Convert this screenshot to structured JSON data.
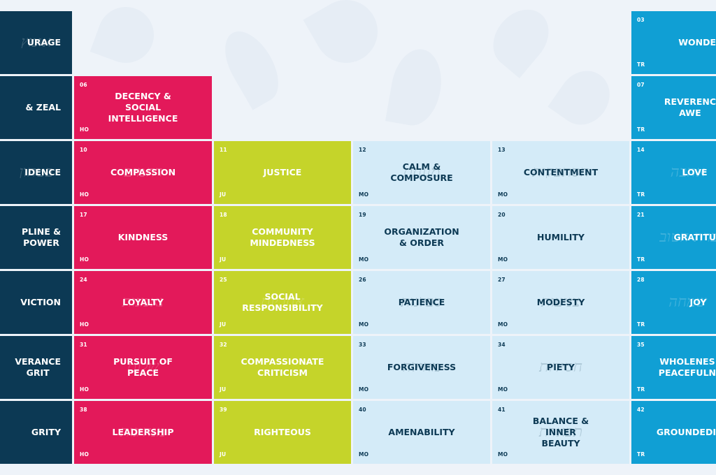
{
  "colors": {
    "navy": "#0c3954",
    "pink": "#e3195a",
    "lime": "#c5d42a",
    "pale": "#d4ebf8",
    "cyan": "#109fd4",
    "background": "#eef3f9"
  },
  "left_column": [
    {
      "name": "URAGE",
      "heb": "אומץ"
    },
    {
      "name": "& ZEAL",
      "heb": ""
    },
    {
      "name": "IDENCE",
      "heb": "בטחון"
    },
    {
      "name": "PLINE &\nPOWER",
      "heb": ""
    },
    {
      "name": "VICTION",
      "heb": ""
    },
    {
      "name": "VERANCE\nGRIT",
      "heb": ""
    },
    {
      "name": "GRITY",
      "heb": ""
    }
  ],
  "cells": [
    {
      "num": "06",
      "name": "DECENCY &\nSOCIAL\nINTELLIGENCE",
      "cat": "HO",
      "heb": ""
    },
    {
      "num": "10",
      "name": "COMPASSION",
      "cat": "HO",
      "heb": "רחמים"
    },
    {
      "num": "11",
      "name": "JUSTICE",
      "cat": "JU",
      "heb": ""
    },
    {
      "num": "12",
      "name": "CALM &\nCOMPOSURE",
      "cat": "MO",
      "heb": "מנוחת"
    },
    {
      "num": "13",
      "name": "CONTENTMENT",
      "cat": "MO",
      "heb": "הסתפקות"
    },
    {
      "num": "17",
      "name": "KINDNESS",
      "cat": "HO",
      "heb": ""
    },
    {
      "num": "18",
      "name": "COMMUNITY\nMINDEDNESS",
      "cat": "JU",
      "heb": ""
    },
    {
      "num": "19",
      "name": "ORGANIZATION\n& ORDER",
      "cat": "MO",
      "heb": ""
    },
    {
      "num": "20",
      "name": "HUMILITY",
      "cat": "MO",
      "heb": ""
    },
    {
      "num": "24",
      "name": "LOYALTY",
      "cat": "HO",
      "heb": "נאמנות"
    },
    {
      "num": "25",
      "name": "SOCIAL\nRESPONSIBILITY",
      "cat": "JU",
      "heb": "אחריות"
    },
    {
      "num": "26",
      "name": "PATIENCE",
      "cat": "MO",
      "heb": "סבלנות"
    },
    {
      "num": "27",
      "name": "MODESTY",
      "cat": "MO",
      "heb": "צניעות"
    },
    {
      "num": "31",
      "name": "PURSUIT OF\nPEACE",
      "cat": "HO",
      "heb": "שלום"
    },
    {
      "num": "32",
      "name": "COMPASSIONATE\nCRITICISM",
      "cat": "JU",
      "heb": ""
    },
    {
      "num": "33",
      "name": "FORGIVENESS",
      "cat": "MO",
      "heb": "מחילה"
    },
    {
      "num": "34",
      "name": "PIETY",
      "cat": "MO",
      "heb": "חסידות"
    },
    {
      "num": "38",
      "name": "LEADERSHIP",
      "cat": "HO",
      "heb": "מנהיגות"
    },
    {
      "num": "39",
      "name": "RIGHTEOUS",
      "cat": "JU",
      "heb": ""
    },
    {
      "num": "40",
      "name": "AMENABILITY",
      "cat": "MO",
      "heb": ""
    },
    {
      "num": "41",
      "name": "BALANCE &\nINNER\nBEAUTY",
      "cat": "MO",
      "heb": "תפארת"
    }
  ],
  "right_column": [
    {
      "num": "03",
      "name": "WONDE",
      "cat": "TR",
      "heb": ""
    },
    {
      "num": "07",
      "name": "REVERENC\nAWE",
      "cat": "TR",
      "heb": ""
    },
    {
      "num": "14",
      "name": "LOVE",
      "cat": "TR",
      "heb": "אהבה"
    },
    {
      "num": "21",
      "name": "GRATITU",
      "cat": "TR",
      "heb": "הכרת הטוב"
    },
    {
      "num": "28",
      "name": "JOY",
      "cat": "TR",
      "heb": "שמחה"
    },
    {
      "num": "35",
      "name": "WHOLENES\nPEACEFULN",
      "cat": "TR",
      "heb": ""
    },
    {
      "num": "42",
      "name": "GROUNDEDI",
      "cat": "TR",
      "heb": ""
    }
  ]
}
